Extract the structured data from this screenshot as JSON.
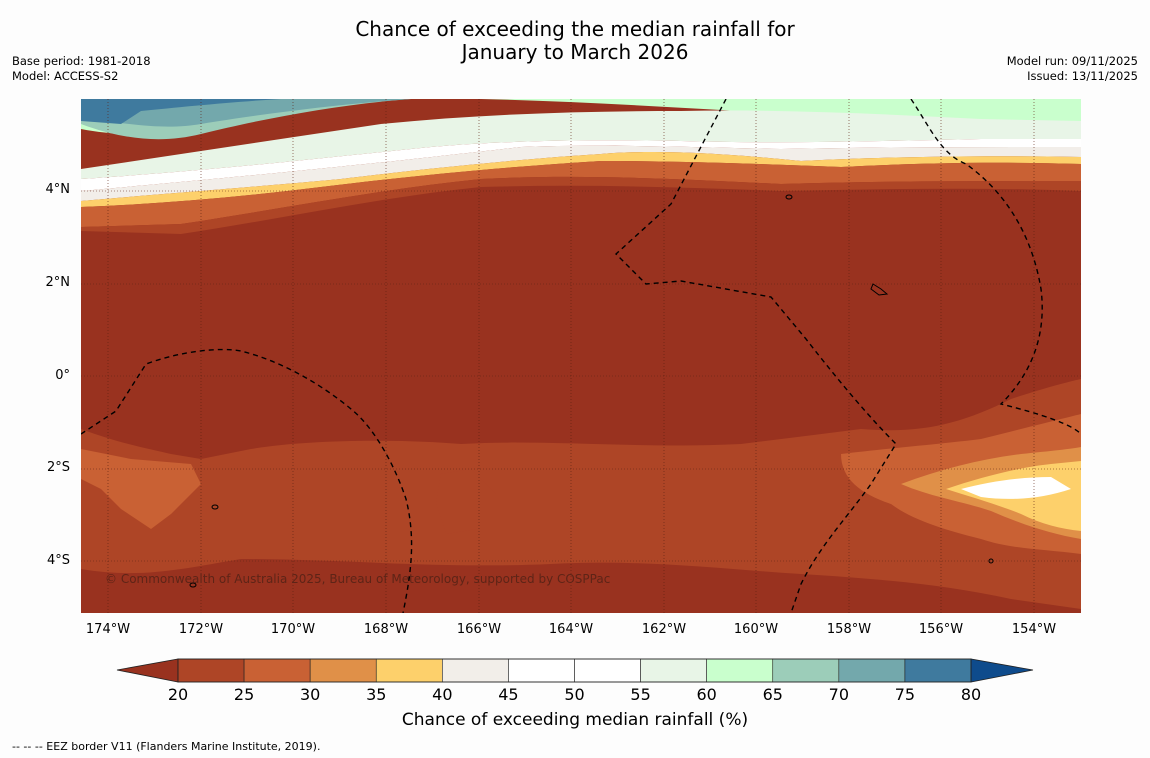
{
  "title_line1": "Chance of exceeding the median rainfall for",
  "title_line2": "January to March 2026",
  "base_period": "Base period: 1981-2018",
  "model": "Model: ACCESS-S2",
  "model_run": "Model run: 09/11/2025",
  "issued": "Issued: 13/11/2025",
  "copyright": "© Commonwealth of Australia 2025, Bureau of Meteorology, supported by COSPPac",
  "lat_labels": [
    "4°N",
    "2°N",
    "0°",
    "2°S",
    "4°S"
  ],
  "lon_labels": [
    "174°W",
    "172°W",
    "170°W",
    "168°W",
    "166°W",
    "164°W",
    "162°W",
    "160°W",
    "158°W",
    "156°W",
    "154°W"
  ],
  "colorbar": {
    "ticks": [
      "20",
      "25",
      "30",
      "35",
      "40",
      "45",
      "50",
      "55",
      "60",
      "65",
      "70",
      "75",
      "80"
    ],
    "colors": [
      "#ae4526",
      "#c96134",
      "#e09048",
      "#fdd06b",
      "#f2eee9",
      "#ffffff",
      "#ffffff",
      "#e8f5e7",
      "#c9ffcd",
      "#9ccdb9",
      "#73a8ac",
      "#3f7a9e"
    ],
    "under_color": "#99321f",
    "over_color": "#0e4b8c",
    "label": "Chance of exceeding median rainfall (%)"
  },
  "footer": "--  --  -- EEZ border V11 (Flanders Marine Institute, 2019)."
}
